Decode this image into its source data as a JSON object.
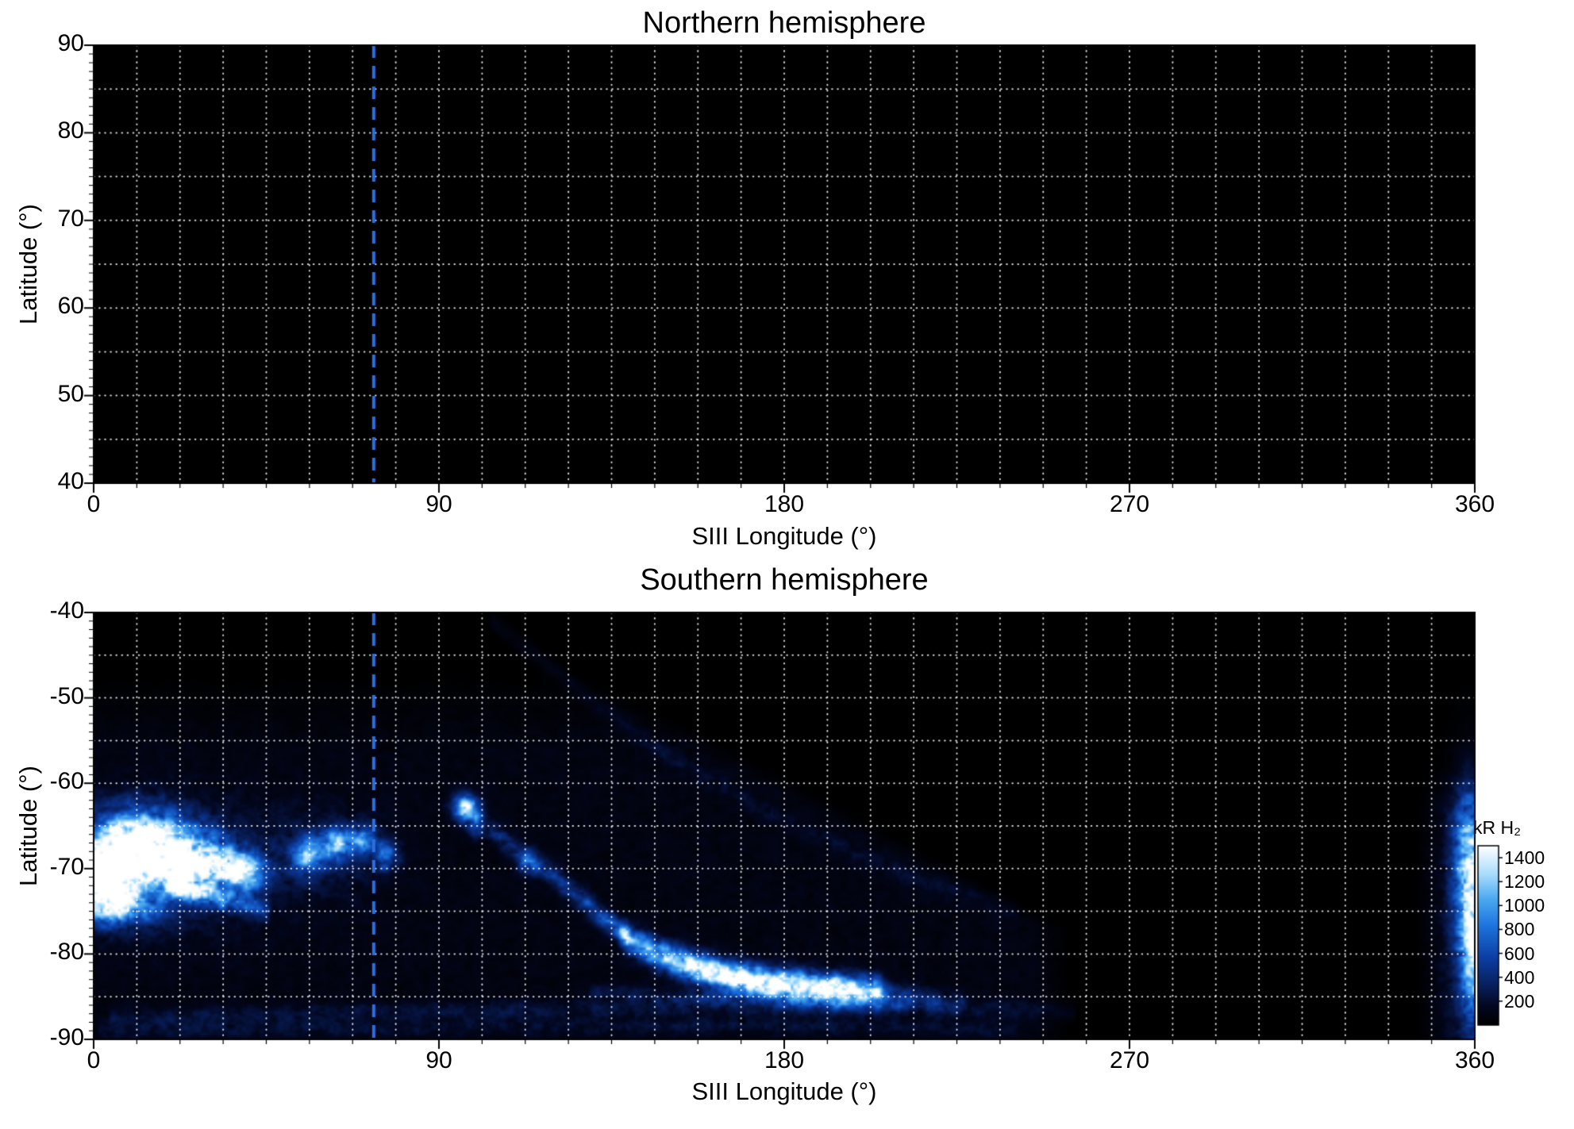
{
  "chart_data": {
    "type": "heatmap",
    "description": "Auroral H2 emission maps vs SIII longitude and latitude, northern and southern hemispheres",
    "reference_line": {
      "longitude_deg": 73,
      "color": "#2b6fdf",
      "style": "dashed"
    },
    "grid": {
      "lon_step_deg": 11.25,
      "lat_step_deg": 5,
      "color": "#ffffff",
      "style": "dotted"
    },
    "panels": [
      {
        "title": "Northern hemisphere",
        "xlabel": "SIII Longitude (°)",
        "ylabel": "Latitude (°)",
        "xlim": [
          0,
          360
        ],
        "ylim": [
          40,
          90
        ],
        "xticks": [
          "0",
          "90",
          "180",
          "270",
          "360"
        ],
        "yticks": [
          "90",
          "80",
          "70",
          "60",
          "50",
          "40"
        ],
        "emission_features": []
      },
      {
        "title": "Southern hemisphere",
        "xlabel": "SIII Longitude (°)",
        "ylabel": "Latitude (°)",
        "xlim": [
          0,
          360
        ],
        "ylim": [
          -90,
          -40
        ],
        "xticks": [
          "0",
          "90",
          "180",
          "270",
          "360"
        ],
        "yticks": [
          "-40",
          "-50",
          "-60",
          "-70",
          "-80",
          "-90"
        ],
        "background_texture": {
          "amplitude_kR": 120,
          "diag_start_lon": 104,
          "diag_start_lat": -41,
          "diag_slope": 4.2,
          "diag_cap_lon": 255,
          "softness": 10,
          "wrap_start_lon": 344,
          "wrap_top_lat": -58,
          "top_fade_lat": -47,
          "top_fade_softness": 9
        },
        "emission_features": [
          {
            "kind": "blob",
            "lon": 12,
            "lat": -67.5,
            "sigma_lon": 9,
            "sigma_lat": 2.8,
            "peak_kR": 1700
          },
          {
            "kind": "blob",
            "lon": 27,
            "lat": -69.5,
            "sigma_lon": 7,
            "sigma_lat": 2.2,
            "peak_kR": 1250
          },
          {
            "kind": "blob",
            "lon": 3,
            "lat": -71.5,
            "sigma_lon": 6,
            "sigma_lat": 2.6,
            "peak_kR": 1500
          },
          {
            "kind": "blob",
            "lon": 8,
            "lat": -74.8,
            "sigma_lon": 7,
            "sigma_lat": 1.3,
            "peak_kR": 650
          },
          {
            "kind": "blob",
            "lon": 39,
            "lat": -70.5,
            "sigma_lon": 4,
            "sigma_lat": 1.5,
            "peak_kR": 1000
          },
          {
            "kind": "blob",
            "lon": 56,
            "lat": -68.5,
            "sigma_lon": 2.8,
            "sigma_lat": 1.4,
            "peak_kR": 900
          },
          {
            "kind": "blob",
            "lon": 63,
            "lat": -67.2,
            "sigma_lon": 2.4,
            "sigma_lat": 1.3,
            "peak_kR": 1000
          },
          {
            "kind": "blob",
            "lon": 70,
            "lat": -66.6,
            "sigma_lon": 2.4,
            "sigma_lat": 1.2,
            "peak_kR": 850
          },
          {
            "kind": "blob",
            "lon": 76,
            "lat": -68.6,
            "sigma_lon": 2.2,
            "sigma_lat": 1.2,
            "peak_kR": 600
          },
          {
            "kind": "blob",
            "lon": 97,
            "lat": -62.8,
            "sigma_lon": 2.2,
            "sigma_lat": 1.0,
            "peak_kR": 1400
          },
          {
            "kind": "blob",
            "lon": 100,
            "lat": -64.6,
            "sigma_lon": 1.4,
            "sigma_lat": 1.0,
            "peak_kR": 700
          },
          {
            "kind": "blob",
            "lon": 113,
            "lat": -69.5,
            "sigma_lon": 2.0,
            "sigma_lat": 0.9,
            "peak_kR": 500
          },
          {
            "kind": "blob",
            "lon": 18,
            "lat": -70,
            "sigma_lon": 20,
            "sigma_lat": 5,
            "peak_kR": 240
          },
          {
            "kind": "blob",
            "lon": 60,
            "lat": -68,
            "sigma_lon": 12,
            "sigma_lat": 3.5,
            "peak_kR": 150
          },
          {
            "kind": "blob",
            "lon": 359,
            "lat": -70,
            "sigma_lon": 2.8,
            "sigma_lat": 6,
            "peak_kR": 1100
          },
          {
            "kind": "blob",
            "lon": 360,
            "lat": -80,
            "sigma_lon": 2.4,
            "sigma_lat": 6,
            "peak_kR": 950
          },
          {
            "kind": "blob",
            "lon": 359,
            "lat": -75,
            "sigma_lon": 5,
            "sigma_lat": 10,
            "peak_kR": 280
          },
          {
            "kind": "arc",
            "width_deg": 0.9,
            "points": [
              [
                104,
                -65.5,
                260
              ],
              [
                112,
                -68.3,
                330
              ],
              [
                120,
                -71,
                380
              ],
              [
                127,
                -73.5,
                430
              ],
              [
                133,
                -75.8,
                520
              ],
              [
                139,
                -77.8,
                650
              ]
            ]
          },
          {
            "kind": "arc",
            "width_deg": 1.15,
            "points": [
              [
                139,
                -78.2,
                700
              ],
              [
                147,
                -80,
                1000
              ],
              [
                156,
                -81.5,
                1450
              ],
              [
                166,
                -82.6,
                1650
              ],
              [
                177,
                -83.4,
                1650
              ],
              [
                188,
                -83.9,
                1600
              ],
              [
                197,
                -84.2,
                1450
              ],
              [
                204,
                -84.3,
                900
              ]
            ]
          },
          {
            "kind": "arc",
            "width_deg": 0.9,
            "points": [
              [
                204,
                -84.6,
                500
              ],
              [
                214,
                -85.1,
                300
              ],
              [
                226,
                -85.8,
                160
              ]
            ]
          },
          {
            "kind": "arc",
            "width_deg": 0.8,
            "points": [
              [
                5,
                -87.5,
                130
              ],
              [
                60,
                -87,
                120
              ],
              [
                120,
                -86.5,
                130
              ],
              [
                170,
                -86,
                150
              ],
              [
                220,
                -86.3,
                130
              ],
              [
                255,
                -86.8,
                90
              ]
            ]
          },
          {
            "kind": "arc",
            "width_deg": 0.6,
            "points": [
              [
                130,
                -84.5,
                150
              ],
              [
                150,
                -84.9,
                190
              ],
              [
                170,
                -85.3,
                200
              ],
              [
                190,
                -85.6,
                180
              ],
              [
                210,
                -86,
                140
              ]
            ]
          },
          {
            "kind": "arc",
            "width_deg": 0.8,
            "points": [
              [
                104,
                -41,
                80
              ],
              [
                126,
                -49,
                90
              ],
              [
                150,
                -57,
                95
              ],
              [
                178,
                -64,
                90
              ],
              [
                208,
                -70,
                85
              ],
              [
                240,
                -75,
                70
              ]
            ]
          },
          {
            "kind": "arc",
            "width_deg": 0.7,
            "points": [
              [
                2,
                -89,
                110
              ],
              [
                80,
                -88.7,
                100
              ],
              [
                160,
                -88.4,
                110
              ],
              [
                240,
                -88.8,
                90
              ]
            ]
          },
          {
            "kind": "arc",
            "width_deg": 0.8,
            "points": [
              [
                20,
                -72,
                800
              ],
              [
                32,
                -73.5,
                550
              ],
              [
                45,
                -75,
                350
              ]
            ]
          }
        ]
      }
    ],
    "colorbar": {
      "label": "kR H₂",
      "ticks": [
        "1400",
        "1200",
        "1000",
        "800",
        "600",
        "400",
        "200"
      ],
      "range_kR": [
        0,
        1500
      ],
      "gradient": [
        [
          0,
          "#000000"
        ],
        [
          0.1,
          "#03071f"
        ],
        [
          0.22,
          "#081f5c"
        ],
        [
          0.38,
          "#0c3fa5"
        ],
        [
          0.55,
          "#1c72dd"
        ],
        [
          0.7,
          "#4aa8f0"
        ],
        [
          0.84,
          "#a6dcfc"
        ],
        [
          1,
          "#ffffff"
        ]
      ]
    }
  }
}
